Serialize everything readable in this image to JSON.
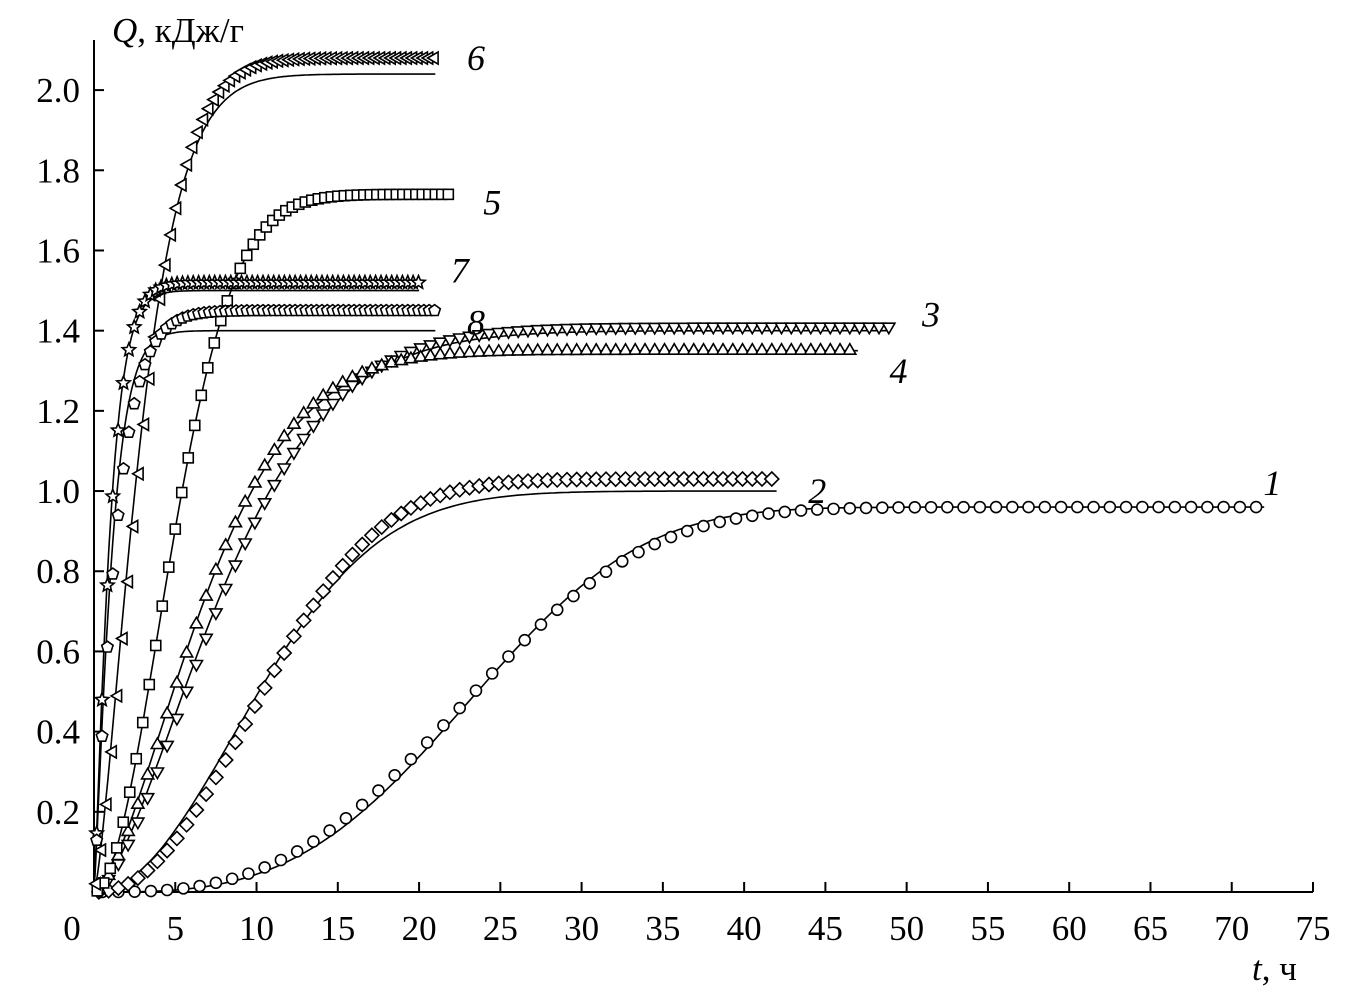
{
  "chart_data": {
    "type": "scatter",
    "ylabel_var": "Q",
    "ylabel_unit": ", кДж/г",
    "xlabel_var": "t",
    "xlabel_unit": ", ч",
    "xlim": [
      0,
      75
    ],
    "ylim": [
      0,
      2.1
    ],
    "xticks": [
      0,
      5,
      10,
      15,
      20,
      25,
      30,
      35,
      40,
      45,
      50,
      55,
      60,
      65,
      70,
      75
    ],
    "yticks": [
      0.2,
      0.4,
      0.6,
      0.8,
      1.0,
      1.2,
      1.4,
      1.6,
      1.8,
      2.0
    ],
    "xtick_labels": [
      "0",
      "5",
      "10",
      "15",
      "20",
      "25",
      "30",
      "35",
      "40",
      "45",
      "50",
      "55",
      "60",
      "65",
      "70",
      "75"
    ],
    "ytick_labels": [
      "0.2",
      "0.4",
      "0.6",
      "0.8",
      "1.0",
      "1.2",
      "1.4",
      "1.6",
      "1.8",
      "2.0"
    ],
    "grid": false,
    "series": [
      {
        "name": "1",
        "marker": "circle",
        "qmax": 0.96,
        "k": 0.0385,
        "n": 3.0,
        "t0": 0,
        "tend": 72,
        "dt": 1.0,
        "fit": {
          "qmax": 0.96,
          "k": 0.0385,
          "n": 3.2,
          "t0": 0,
          "tend": 72
        }
      },
      {
        "name": "2",
        "marker": "diamond",
        "qmax": 1.03,
        "k": 0.08,
        "n": 2.2,
        "t0": 0,
        "tend": 42,
        "dt": 0.6,
        "fit": {
          "qmax": 1.0,
          "k": 0.082,
          "n": 2.0,
          "t0": 0,
          "tend": 42
        }
      },
      {
        "name": "3",
        "marker": "triangle-down",
        "qmax": 1.41,
        "k": 0.105,
        "n": 1.6,
        "t0": 0,
        "tend": 49,
        "dt": 0.6,
        "fit": {
          "qmax": 1.4,
          "k": 0.107,
          "n": 1.55,
          "t0": 0,
          "tend": 49
        }
      },
      {
        "name": "4",
        "marker": "triangle-up",
        "qmax": 1.35,
        "k": 0.125,
        "n": 1.6,
        "t0": 0,
        "tend": 47,
        "dt": 0.6,
        "fit": {
          "qmax": 1.35,
          "k": 0.125,
          "n": 1.55,
          "t0": 0,
          "tend": 47
        }
      },
      {
        "name": "5",
        "marker": "square",
        "qmax": 1.74,
        "k": 0.17,
        "n": 1.9,
        "t0": 0,
        "tend": 22,
        "dt": 0.4,
        "fit": {
          "qmax": 1.74,
          "k": 0.17,
          "n": 1.9,
          "t0": 0,
          "tend": 22
        }
      },
      {
        "name": "6",
        "marker": "triangle-left",
        "qmax": 2.08,
        "k": 0.28,
        "n": 1.5,
        "t0": 0,
        "tend": 21,
        "dt": 0.33,
        "fit": {
          "qmax": 2.04,
          "k": 0.3,
          "n": 1.4,
          "t0": 0,
          "tend": 21
        }
      },
      {
        "name": "7",
        "marker": "star",
        "qmax": 1.52,
        "k": 0.9,
        "n": 1.2,
        "t0": 0,
        "tend": 20,
        "dt": 0.33,
        "fit": {
          "qmax": 1.5,
          "k": 0.95,
          "n": 1.2,
          "t0": 0,
          "tend": 20
        }
      },
      {
        "name": "8",
        "marker": "pentagon",
        "qmax": 1.45,
        "k": 0.7,
        "n": 1.1,
        "t0": 0,
        "tend": 21,
        "dt": 0.33,
        "fit": {
          "qmax": 1.4,
          "k": 0.85,
          "n": 1.2,
          "t0": 0,
          "tend": 21
        }
      }
    ],
    "curve_labels": [
      {
        "text": "1",
        "x": 72.5,
        "y": 1.02
      },
      {
        "text": "2",
        "x": 44.5,
        "y": 1.0
      },
      {
        "text": "3",
        "x": 51.5,
        "y": 1.44
      },
      {
        "text": "4",
        "x": 49.5,
        "y": 1.3
      },
      {
        "text": "5",
        "x": 24.5,
        "y": 1.72
      },
      {
        "text": "6",
        "x": 23.5,
        "y": 2.08
      },
      {
        "text": "7",
        "x": 22.5,
        "y": 1.55
      },
      {
        "text": "8",
        "x": 23.5,
        "y": 1.42
      }
    ]
  }
}
